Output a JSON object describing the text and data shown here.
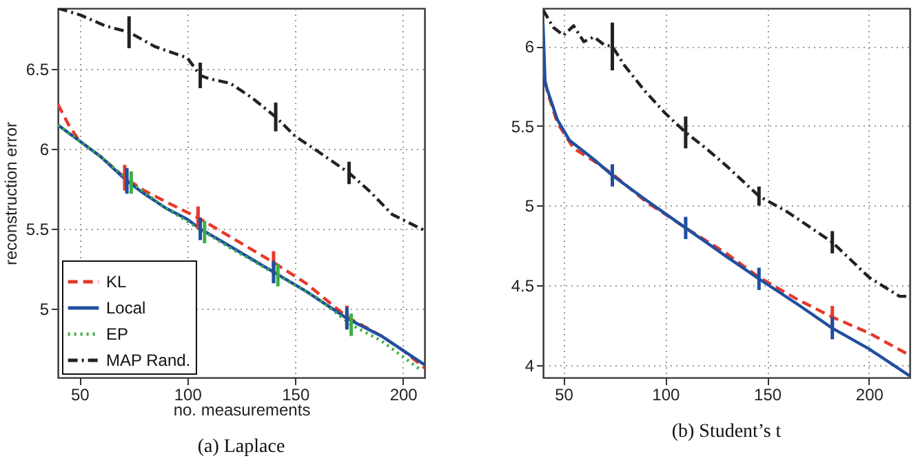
{
  "chart_data": [
    {
      "type": "line",
      "title": "(a)  Laplace",
      "xlabel": "no. measurements",
      "ylabel": "reconstruction error",
      "xlim": [
        40,
        210
      ],
      "ylim": [
        4.57,
        6.88
      ],
      "xticks": [
        50,
        100,
        150,
        200
      ],
      "yticks": [
        5,
        5.5,
        6,
        6.5
      ],
      "grid": true,
      "legend": "bottom left",
      "series": [
        {
          "name": "KL",
          "color": "#e8382a",
          "line_style": "dashed",
          "x": [
            40,
            45,
            50,
            60,
            71,
            80,
            90,
            105,
            120,
            140,
            155,
            174,
            190,
            200,
            210
          ],
          "values": [
            6.28,
            6.15,
            6.05,
            5.95,
            5.82,
            5.74,
            5.67,
            5.57,
            5.45,
            5.29,
            5.16,
            4.95,
            4.83,
            4.74,
            4.63
          ],
          "errors": [
            null,
            null,
            null,
            null,
            0.08,
            null,
            null,
            0.07,
            null,
            0.07,
            null,
            0.07,
            null,
            null,
            null
          ]
        },
        {
          "name": "Local",
          "color": "#1f4fa0",
          "line_style": "solid",
          "x": [
            40,
            45,
            50,
            60,
            72,
            80,
            90,
            100,
            106,
            120,
            140,
            155,
            174,
            190,
            200,
            210
          ],
          "values": [
            6.15,
            6.1,
            6.05,
            5.95,
            5.8,
            5.72,
            5.63,
            5.56,
            5.5,
            5.39,
            5.23,
            5.11,
            4.94,
            4.83,
            4.74,
            4.65
          ],
          "errors": [
            null,
            null,
            null,
            null,
            0.08,
            null,
            null,
            null,
            0.07,
            null,
            0.07,
            null,
            0.07,
            null,
            null,
            null
          ]
        },
        {
          "name": "EP",
          "color": "#3cb043",
          "line_style": "dotted",
          "x": [
            40,
            50,
            60,
            74,
            90,
            108,
            120,
            142,
            160,
            176,
            190,
            200,
            208
          ],
          "values": [
            6.15,
            6.05,
            5.95,
            5.79,
            5.63,
            5.48,
            5.38,
            5.21,
            5.07,
            4.9,
            4.8,
            4.7,
            4.62
          ],
          "errors": [
            null,
            null,
            null,
            0.07,
            null,
            0.07,
            null,
            0.07,
            null,
            0.07,
            null,
            null,
            null
          ]
        },
        {
          "name": "MAP Rand.",
          "color": "#222222",
          "line_style": "dashdot",
          "x": [
            40,
            50,
            62,
            73,
            85,
            100,
            106,
            110,
            120,
            130,
            141,
            150,
            160,
            175,
            185,
            195,
            210
          ],
          "values": [
            6.88,
            6.84,
            6.77,
            6.73,
            6.64,
            6.57,
            6.46,
            6.44,
            6.41,
            6.32,
            6.2,
            6.08,
            5.99,
            5.85,
            5.73,
            5.59,
            5.49
          ],
          "errors": [
            null,
            null,
            null,
            0.1,
            null,
            null,
            0.08,
            null,
            null,
            null,
            0.09,
            null,
            null,
            0.07,
            null,
            null,
            null
          ]
        }
      ]
    },
    {
      "type": "line",
      "title": "(b)  Student’s t",
      "xlim": [
        40,
        220
      ],
      "ylim": [
        3.92,
        6.24
      ],
      "xticks": [
        50,
        100,
        150,
        200
      ],
      "yticks": [
        4,
        4.5,
        5,
        5.5,
        6
      ],
      "grid": true,
      "series": [
        {
          "color": "#e8382a",
          "line_style": "dashed",
          "x": [
            40,
            42,
            47,
            55,
            65,
            74,
            90,
            110,
            130,
            146,
            165,
            182,
            200,
            220
          ],
          "values": [
            5.87,
            5.72,
            5.52,
            5.36,
            5.28,
            5.2,
            5.03,
            4.86,
            4.7,
            4.55,
            4.41,
            4.3,
            4.2,
            4.06
          ],
          "errors": [
            null,
            null,
            null,
            null,
            null,
            null,
            null,
            null,
            null,
            null,
            null,
            0.07,
            null,
            null
          ]
        },
        {
          "color": "#1f4fa0",
          "line_style": "solid",
          "x": [
            40,
            41,
            47,
            53,
            58,
            65,
            74,
            90,
            110,
            130,
            146,
            165,
            182,
            200,
            220
          ],
          "values": [
            6.14,
            5.77,
            5.54,
            5.41,
            5.36,
            5.29,
            5.19,
            5.04,
            4.86,
            4.68,
            4.54,
            4.38,
            4.23,
            4.1,
            3.93
          ],
          "errors": [
            null,
            null,
            null,
            null,
            null,
            null,
            0.07,
            null,
            0.07,
            null,
            0.07,
            null,
            0.07,
            null,
            null
          ]
        },
        {
          "color": "#222222",
          "line_style": "dashdot",
          "x": [
            40,
            45,
            50,
            55,
            60,
            65,
            70,
            74,
            80,
            90,
            100,
            110,
            120,
            130,
            146,
            160,
            182,
            200,
            215,
            220
          ],
          "values": [
            6.23,
            6.12,
            6.07,
            6.13,
            6.03,
            6.06,
            6.01,
            6.0,
            5.88,
            5.72,
            5.58,
            5.46,
            5.36,
            5.25,
            5.06,
            4.96,
            4.77,
            4.55,
            4.43,
            4.43
          ],
          "errors": [
            null,
            null,
            null,
            null,
            null,
            null,
            null,
            0.15,
            null,
            null,
            null,
            0.1,
            null,
            null,
            0.06,
            null,
            0.07,
            null,
            null,
            null
          ]
        }
      ]
    }
  ]
}
